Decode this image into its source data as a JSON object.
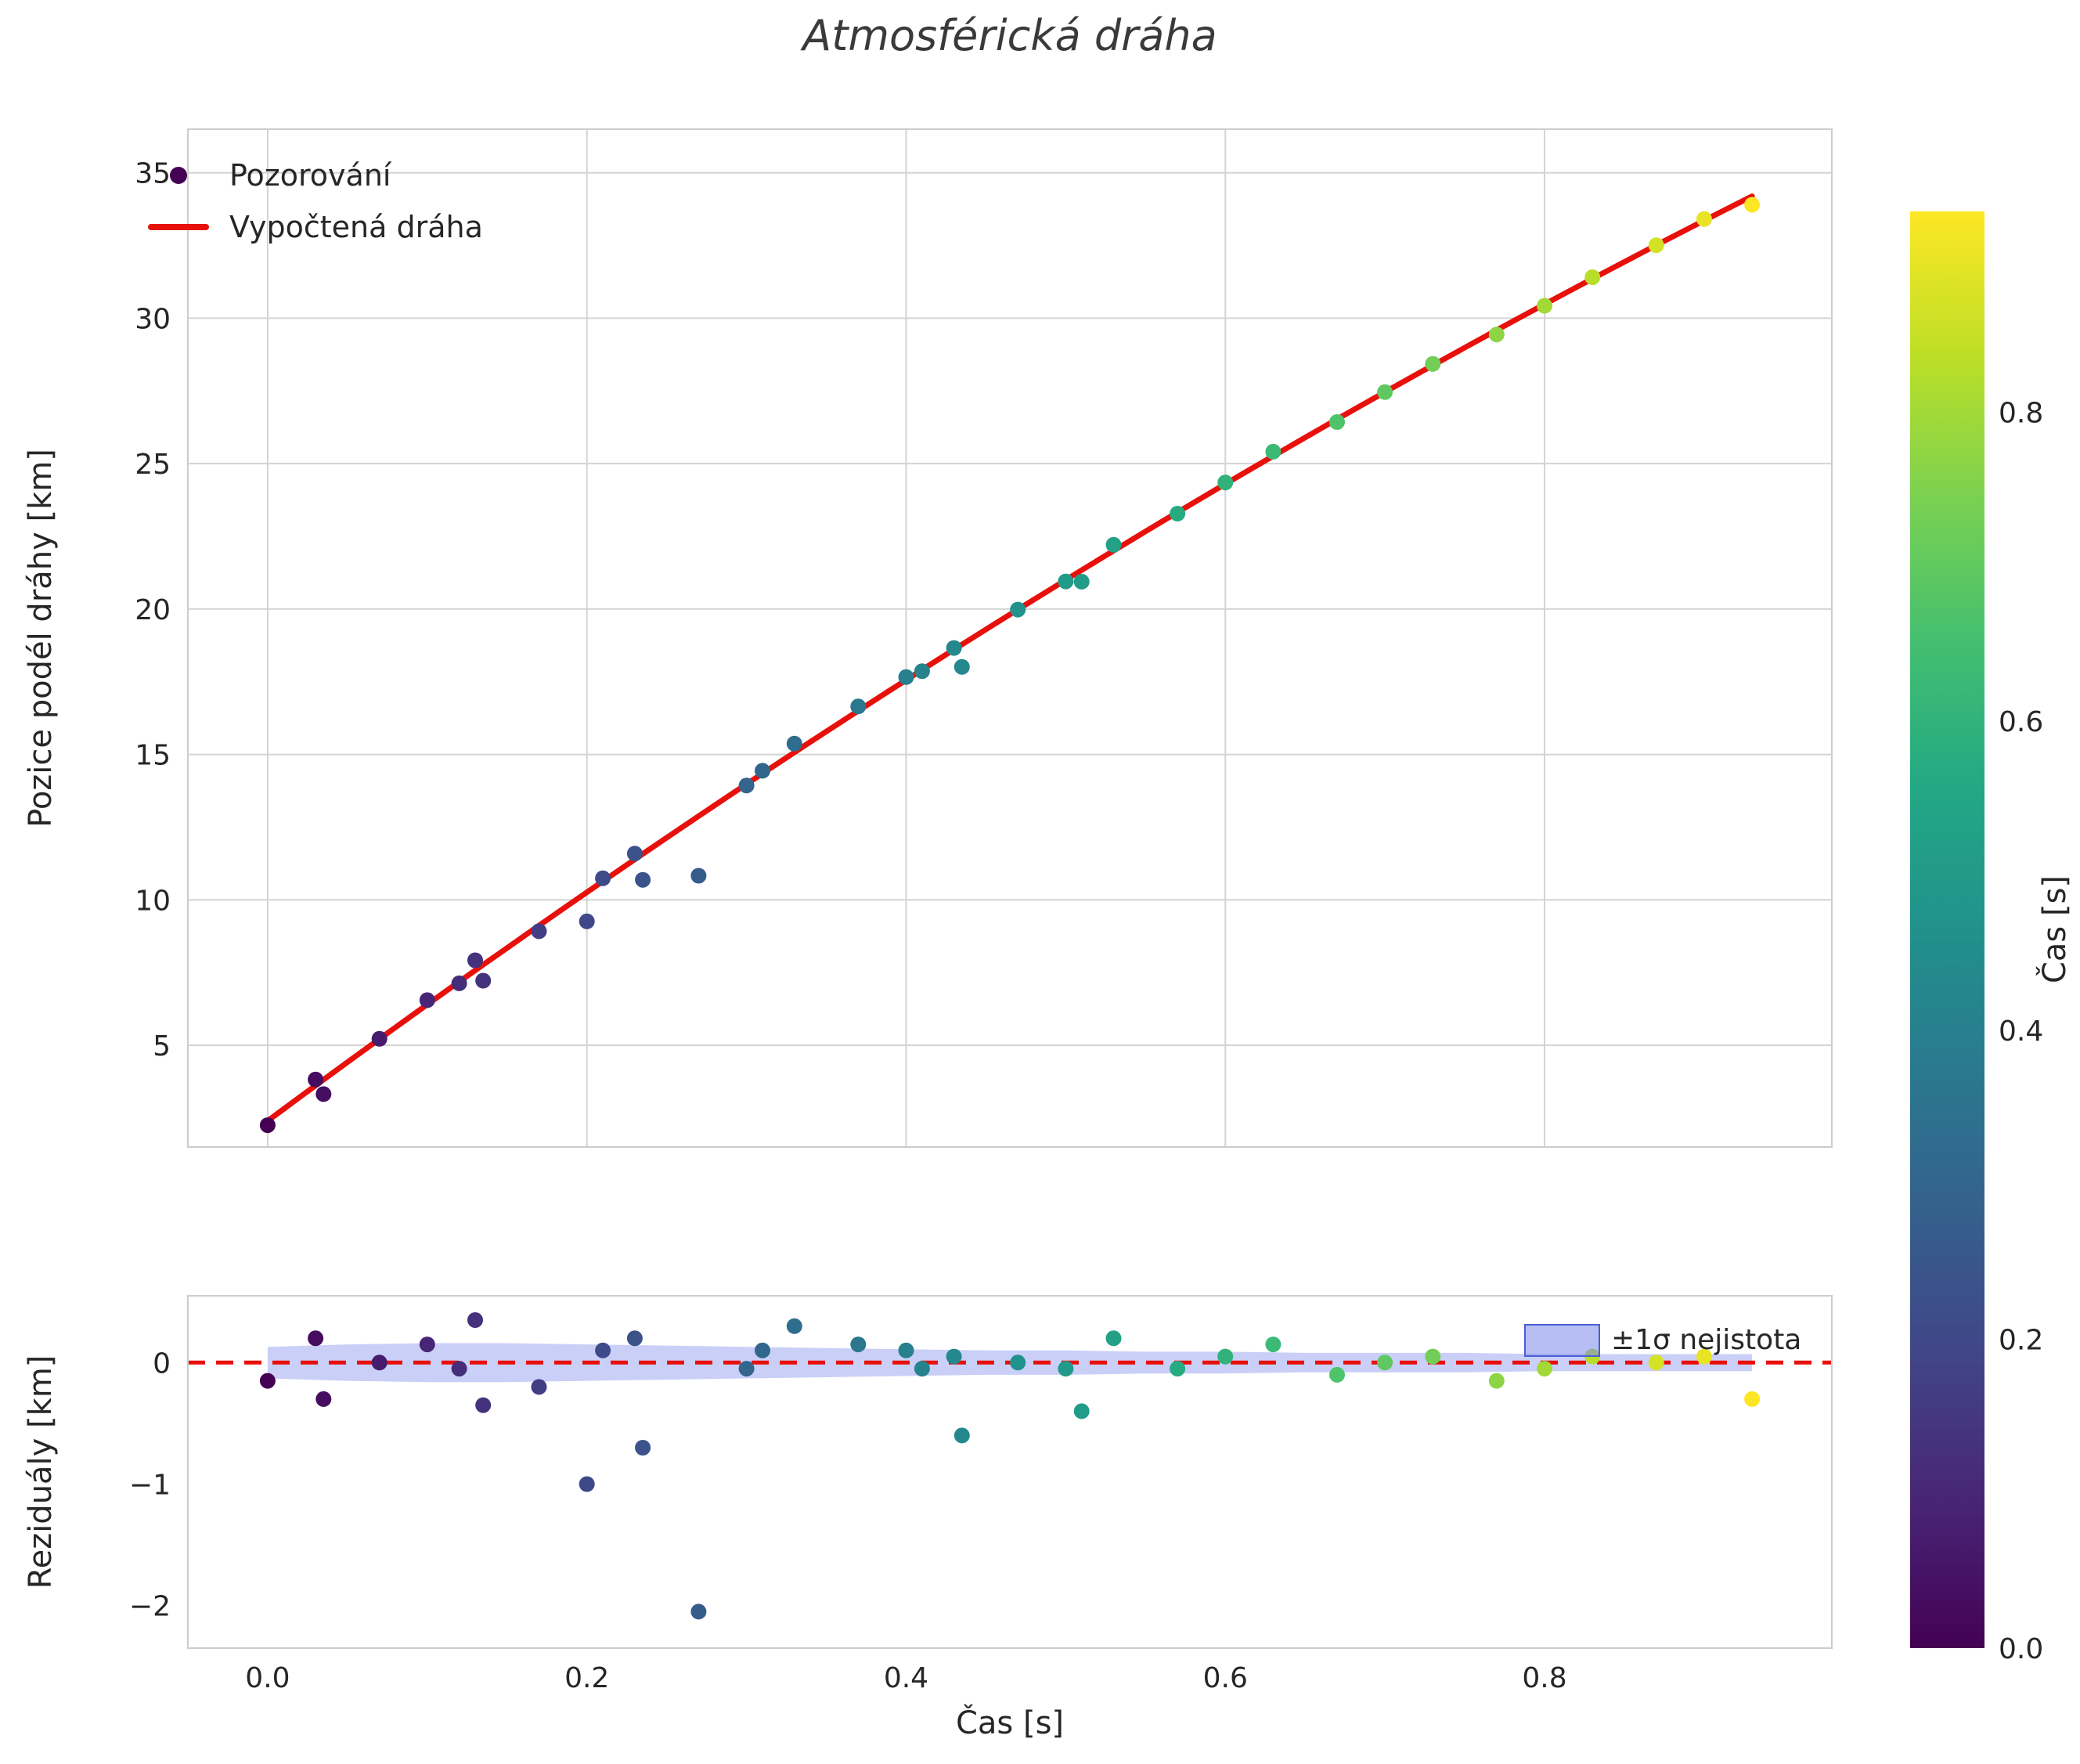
{
  "title": "Atmosférická dráha",
  "colors": {
    "fit": "#e8100b",
    "dashed_zero": "#e8100b",
    "band_fill": "#7b88ea",
    "band_edge": "#4c5fd7",
    "grid": "#d4d4d4",
    "spine": "#cccccc",
    "text": "#262626",
    "title_color": "#3a3a3a"
  },
  "colormap": {
    "name": "viridis",
    "stops": [
      [
        0.0,
        "#440154"
      ],
      [
        0.1,
        "#482475"
      ],
      [
        0.2,
        "#414487"
      ],
      [
        0.3,
        "#355f8d"
      ],
      [
        0.4,
        "#2a788e"
      ],
      [
        0.5,
        "#21918c"
      ],
      [
        0.6,
        "#22a884"
      ],
      [
        0.7,
        "#44bf70"
      ],
      [
        0.8,
        "#7ad151"
      ],
      [
        0.9,
        "#bddf26"
      ],
      [
        1.0,
        "#fde725"
      ]
    ]
  },
  "chart_data": [
    {
      "type": "scatter",
      "title": "Atmosférická dráha",
      "ylabel": "Pozice podél dráhy [km]",
      "xlim": [
        -0.05,
        0.98
      ],
      "ylim": [
        1.5,
        36.5
      ],
      "grid": true,
      "xticks": [
        [
          0.0,
          "0.0"
        ],
        [
          0.2,
          "0.2"
        ],
        [
          0.4,
          "0.4"
        ],
        [
          0.6,
          "0.6"
        ],
        [
          0.8,
          "0.8"
        ]
      ],
      "yticks": [
        [
          5,
          "5"
        ],
        [
          10,
          "10"
        ],
        [
          15,
          "15"
        ],
        [
          20,
          "20"
        ],
        [
          25,
          "25"
        ],
        [
          30,
          "30"
        ],
        [
          35,
          "35"
        ]
      ],
      "legend": [
        {
          "label": "Pozorování",
          "marker": "dot"
        },
        {
          "label": "Vypočtená dráha",
          "marker": "line"
        }
      ],
      "series": [
        {
          "name": "Pozorování",
          "points": [
            [
              0.0,
              2.25,
              -0.15
            ],
            [
              0.03,
              3.82,
              0.2
            ],
            [
              0.035,
              3.32,
              -0.3
            ],
            [
              0.07,
              5.22,
              0.0
            ],
            [
              0.1,
              6.55,
              0.15
            ],
            [
              0.12,
              7.13,
              -0.05
            ],
            [
              0.13,
              7.92,
              0.35
            ],
            [
              0.135,
              7.22,
              -0.35
            ],
            [
              0.17,
              8.92,
              -0.2
            ],
            [
              0.2,
              9.26,
              -1.0
            ],
            [
              0.21,
              10.74,
              0.1
            ],
            [
              0.23,
              11.59,
              0.2
            ],
            [
              0.235,
              10.69,
              -0.7
            ],
            [
              0.27,
              10.83,
              -2.05
            ],
            [
              0.3,
              13.93,
              -0.05
            ],
            [
              0.31,
              14.44,
              0.1
            ],
            [
              0.33,
              15.37,
              0.3
            ],
            [
              0.37,
              16.65,
              0.15
            ],
            [
              0.4,
              17.66,
              0.1
            ],
            [
              0.41,
              17.86,
              -0.05
            ],
            [
              0.43,
              18.66,
              0.05
            ],
            [
              0.435,
              18.01,
              -0.6
            ],
            [
              0.47,
              19.98,
              0.0
            ],
            [
              0.5,
              20.95,
              -0.05
            ],
            [
              0.51,
              20.94,
              -0.4
            ],
            [
              0.53,
              22.21,
              0.2
            ],
            [
              0.57,
              23.28,
              -0.05
            ],
            [
              0.6,
              24.35,
              0.05
            ],
            [
              0.63,
              25.41,
              0.15
            ],
            [
              0.67,
              26.43,
              -0.1
            ],
            [
              0.7,
              27.46,
              0.0
            ],
            [
              0.73,
              28.43,
              0.05
            ],
            [
              0.77,
              29.44,
              -0.15
            ],
            [
              0.8,
              30.43,
              -0.05
            ],
            [
              0.83,
              31.41,
              0.05
            ],
            [
              0.87,
              32.51,
              0.0
            ],
            [
              0.9,
              33.41,
              0.05
            ],
            [
              0.93,
              33.9,
              -0.3
            ]
          ]
        },
        {
          "name": "Vypočtená dráha",
          "fit_coeffs": [
            2.4,
            40.7,
            -7.0
          ],
          "t_range": [
            0.0,
            0.93
          ]
        }
      ]
    },
    {
      "type": "scatter",
      "ylabel": "Reziduály [km]",
      "xlabel": "Čas [s]",
      "xlim": [
        -0.05,
        0.98
      ],
      "ylim": [
        -2.35,
        0.55
      ],
      "grid": false,
      "xticks": [
        [
          0.0,
          "0.0"
        ],
        [
          0.2,
          "0.2"
        ],
        [
          0.4,
          "0.4"
        ],
        [
          0.6,
          "0.6"
        ],
        [
          0.8,
          "0.8"
        ]
      ],
      "yticks": [
        [
          0,
          "0"
        ],
        [
          -1,
          "−1"
        ],
        [
          -2,
          "−2"
        ]
      ],
      "annotation": "±1σ nejistota",
      "residuals": [
        [
          0.0,
          -0.15
        ],
        [
          0.03,
          0.2
        ],
        [
          0.035,
          -0.3
        ],
        [
          0.07,
          0.0
        ],
        [
          0.1,
          0.15
        ],
        [
          0.12,
          -0.05
        ],
        [
          0.13,
          0.35
        ],
        [
          0.135,
          -0.35
        ],
        [
          0.17,
          -0.2
        ],
        [
          0.2,
          -1.0
        ],
        [
          0.21,
          0.1
        ],
        [
          0.23,
          0.2
        ],
        [
          0.235,
          -0.7
        ],
        [
          0.27,
          -2.05
        ],
        [
          0.3,
          -0.05
        ],
        [
          0.31,
          0.1
        ],
        [
          0.33,
          0.3
        ],
        [
          0.37,
          0.15
        ],
        [
          0.4,
          0.1
        ],
        [
          0.41,
          -0.05
        ],
        [
          0.43,
          0.05
        ],
        [
          0.435,
          -0.6
        ],
        [
          0.47,
          0.0
        ],
        [
          0.5,
          -0.05
        ],
        [
          0.51,
          -0.4
        ],
        [
          0.53,
          0.2
        ],
        [
          0.57,
          -0.05
        ],
        [
          0.6,
          0.05
        ],
        [
          0.63,
          0.15
        ],
        [
          0.67,
          -0.1
        ],
        [
          0.7,
          0.0
        ],
        [
          0.73,
          0.05
        ],
        [
          0.77,
          -0.15
        ],
        [
          0.8,
          -0.05
        ],
        [
          0.83,
          0.05
        ],
        [
          0.87,
          0.0
        ],
        [
          0.9,
          0.05
        ],
        [
          0.93,
          -0.3
        ]
      ],
      "band": {
        "t": [
          0.0,
          0.05,
          0.1,
          0.15,
          0.2,
          0.25,
          0.3,
          0.35,
          0.4,
          0.45,
          0.5,
          0.55,
          0.6,
          0.65,
          0.7,
          0.75,
          0.8,
          0.85,
          0.9,
          0.93
        ],
        "sigma": [
          0.13,
          0.15,
          0.16,
          0.16,
          0.15,
          0.14,
          0.13,
          0.12,
          0.11,
          0.1,
          0.1,
          0.09,
          0.09,
          0.08,
          0.08,
          0.08,
          0.07,
          0.07,
          0.07,
          0.07
        ]
      }
    }
  ],
  "colorbar": {
    "label": "Čas [s]",
    "range": [
      0.0,
      0.93
    ],
    "ticks": [
      [
        0.0,
        "0.0"
      ],
      [
        0.2,
        "0.2"
      ],
      [
        0.4,
        "0.4"
      ],
      [
        0.6,
        "0.6"
      ],
      [
        0.8,
        "0.8"
      ]
    ]
  }
}
